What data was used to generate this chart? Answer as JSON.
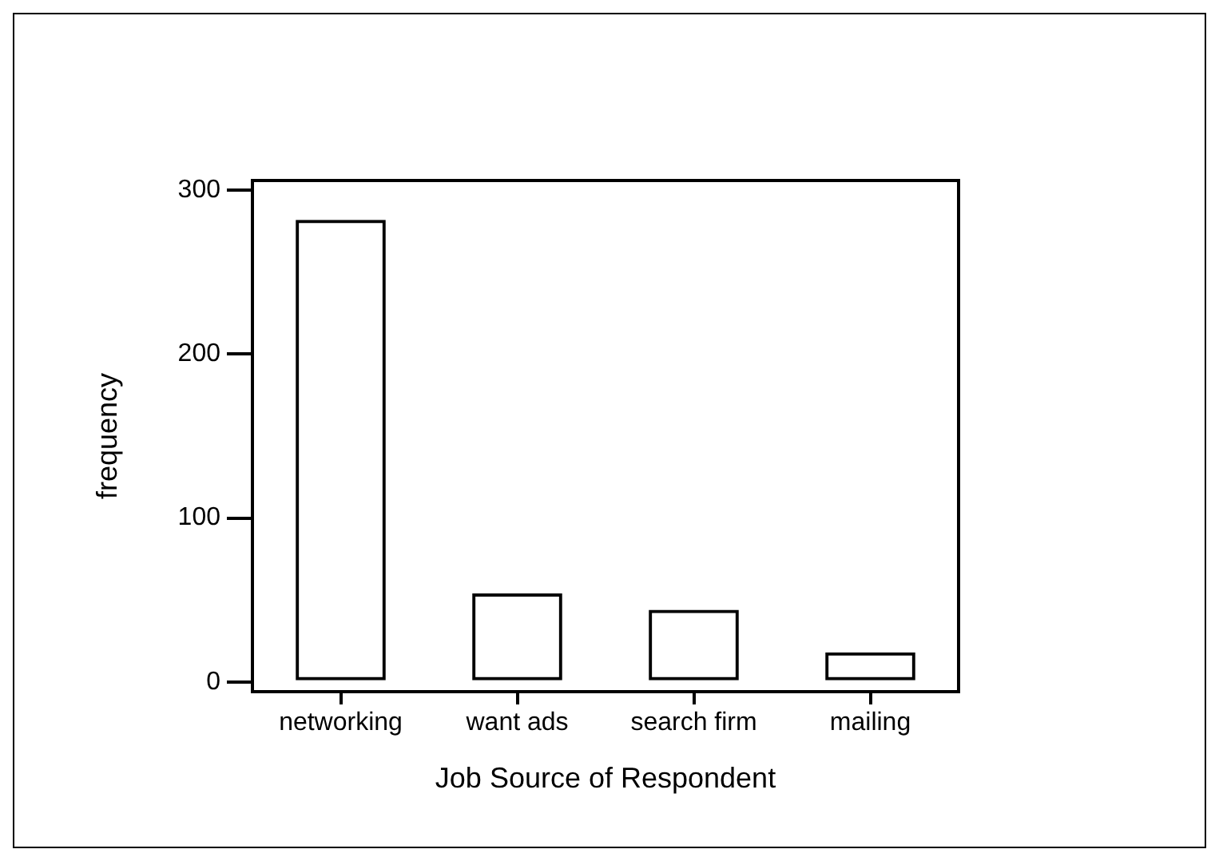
{
  "chart_data": {
    "type": "bar",
    "xlabel": "Job Source of Respondent",
    "ylabel": "frequency",
    "categories": [
      "networking",
      "want ads",
      "search firm",
      "mailing"
    ],
    "values": [
      282,
      54,
      44,
      18
    ],
    "color": "#000000",
    "ylim": [
      -6,
      306
    ],
    "yticks": [
      0,
      100,
      200,
      300
    ]
  }
}
